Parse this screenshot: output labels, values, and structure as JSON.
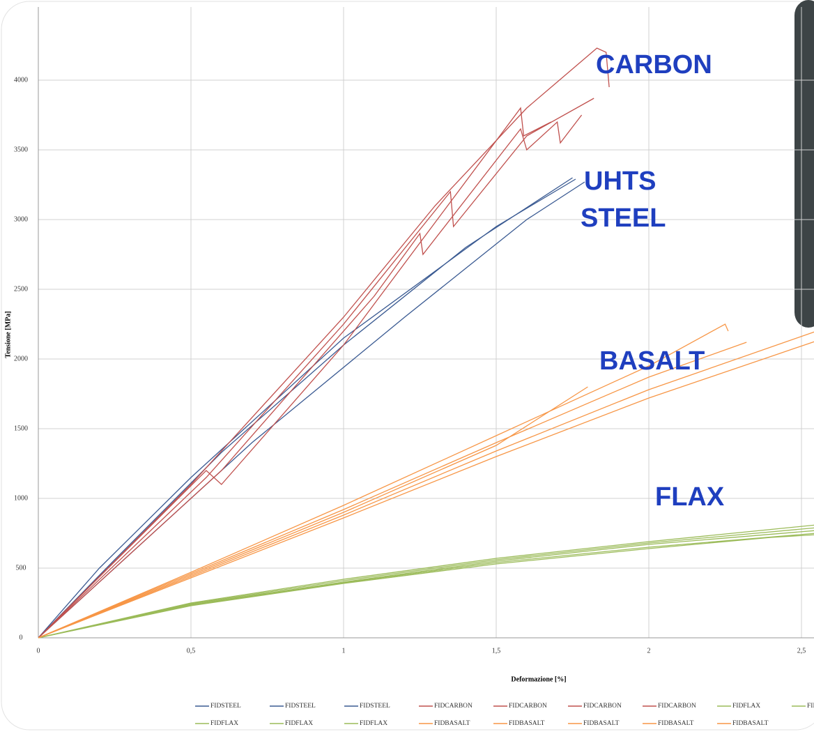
{
  "chart_data": {
    "type": "line",
    "y_label": "Tensione [MPa]",
    "x_label": "Deformazione [%]",
    "xlim": [
      0,
      2.55
    ],
    "ylim": [
      0,
      4500
    ],
    "xticks": [
      0,
      {
        "value": 0.5,
        "label": "0,5"
      },
      1,
      {
        "value": 1.5,
        "label": "1,5"
      },
      2,
      {
        "value": 2.5,
        "label": "2,5"
      }
    ],
    "yticks": [
      0,
      500,
      1000,
      1500,
      2000,
      2500,
      3000,
      3500,
      4000
    ],
    "grid": true,
    "annotations": [
      "CARBON",
      "UHTS",
      "STEEL",
      "BASALT",
      "FLAX"
    ],
    "series": [
      {
        "name": "FIDSTEEL",
        "color": "#3a5a92",
        "x": [
          0,
          0.2,
          0.5,
          1,
          1.5,
          1.76
        ],
        "values": [
          0,
          500,
          1150,
          2150,
          2950,
          3290
        ]
      },
      {
        "name": "FIDSTEEL",
        "color": "#3a5a92",
        "x": [
          0,
          0.25,
          0.6,
          1,
          1.4,
          1.75
        ],
        "values": [
          0,
          560,
          1330,
          2100,
          2800,
          3300
        ]
      },
      {
        "name": "FIDSTEEL",
        "color": "#3a5a92",
        "x": [
          0,
          0.3,
          0.7,
          1.2,
          1.6,
          1.79
        ],
        "values": [
          0,
          600,
          1400,
          2300,
          3000,
          3270
        ]
      },
      {
        "name": "FIDCARBON",
        "color": "#c0504d",
        "x": [
          0,
          0.5,
          1,
          1.3,
          1.6,
          1.83,
          1.86,
          1.87
        ],
        "values": [
          0,
          1100,
          2300,
          3100,
          3800,
          4230,
          4200,
          3950
        ]
      },
      {
        "name": "FIDCARBON",
        "color": "#c0504d",
        "x": [
          0,
          0.55,
          1,
          1.35,
          1.36,
          1.6,
          1.82
        ],
        "values": [
          0,
          1150,
          2250,
          3200,
          2950,
          3600,
          3870
        ]
      },
      {
        "name": "FIDCARBON",
        "color": "#c0504d",
        "x": [
          0,
          0.6,
          1.1,
          1.25,
          1.26,
          1.58,
          1.6,
          1.7,
          1.71,
          1.78
        ],
        "values": [
          0,
          1200,
          2450,
          2900,
          2750,
          3650,
          3500,
          3700,
          3550,
          3750
        ]
      },
      {
        "name": "FIDCARBON",
        "color": "#c0504d",
        "x": [
          0,
          0.55,
          0.6,
          1,
          1.58,
          1.59,
          1.68
        ],
        "values": [
          0,
          1200,
          1100,
          2100,
          3800,
          3600,
          3700
        ]
      },
      {
        "name": "FIDFLAX",
        "color": "#9bbb59",
        "x": [
          0,
          0.5,
          1,
          1.5,
          2,
          2.55
        ],
        "values": [
          0,
          250,
          420,
          570,
          690,
          810
        ]
      },
      {
        "name": "FIDFLAX",
        "color": "#9bbb59",
        "x": [
          0,
          0.5,
          1,
          1.5,
          2,
          2.55
        ],
        "values": [
          0,
          245,
          410,
          560,
          680,
          790
        ]
      },
      {
        "name": "FIDFLAX",
        "color": "#9bbb59",
        "x": [
          0,
          0.5,
          1,
          1.5,
          2,
          2.55
        ],
        "values": [
          0,
          240,
          400,
          550,
          670,
          770
        ]
      },
      {
        "name": "FIDFLAX",
        "color": "#9bbb59",
        "x": [
          0,
          0.5,
          1,
          1.5,
          2,
          2.55
        ],
        "values": [
          0,
          235,
          395,
          540,
          650,
          750
        ]
      },
      {
        "name": "FIDFLAX",
        "color": "#9bbb59",
        "x": [
          0,
          0.5,
          1,
          1.5,
          2,
          2.4,
          2.55
        ],
        "values": [
          0,
          230,
          390,
          530,
          640,
          720,
          740
        ]
      },
      {
        "name": "FIDBASALT",
        "color": "#f79646",
        "x": [
          0,
          0.5,
          1,
          1.5,
          2,
          2.25,
          2.26
        ],
        "values": [
          0,
          470,
          950,
          1450,
          1950,
          2250,
          2200
        ]
      },
      {
        "name": "FIDBASALT",
        "color": "#f79646",
        "x": [
          0,
          0.5,
          1,
          1.5,
          2,
          2.32
        ],
        "values": [
          0,
          460,
          920,
          1400,
          1870,
          2120
        ]
      },
      {
        "name": "FIDBASALT",
        "color": "#f79646",
        "x": [
          0,
          0.5,
          1,
          1.5,
          1.8
        ],
        "values": [
          0,
          450,
          900,
          1380,
          1800
        ]
      },
      {
        "name": "FIDBASALT",
        "color": "#f79646",
        "x": [
          0,
          0.5,
          1,
          1.5,
          2,
          2.55
        ],
        "values": [
          0,
          440,
          880,
          1340,
          1780,
          2200
        ]
      },
      {
        "name": "FIDBASALT",
        "color": "#f79646",
        "x": [
          0,
          0.5,
          1,
          1.5,
          2,
          2.55
        ],
        "values": [
          0,
          430,
          860,
          1300,
          1720,
          2130
        ]
      }
    ]
  }
}
